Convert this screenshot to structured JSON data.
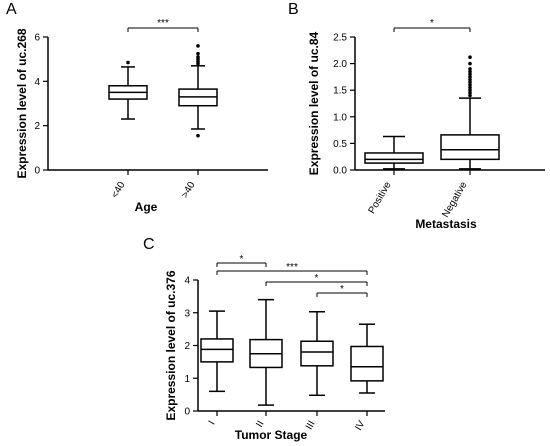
{
  "chart_data": [
    {
      "type": "box",
      "panel": "A",
      "ylabel": "Expression level of uc.268",
      "xlabel": "Age",
      "ylim": [
        0,
        6
      ],
      "yticks": [
        0,
        2,
        4,
        6
      ],
      "categories": [
        "<40",
        ">40"
      ],
      "boxes": [
        {
          "category": "<40",
          "whisker_low": 2.3,
          "q1": 3.2,
          "median": 3.5,
          "q3": 3.8,
          "whisker_high": 4.65,
          "outliers": [
            4.85
          ]
        },
        {
          "category": ">40",
          "whisker_low": 1.85,
          "q1": 2.9,
          "median": 3.3,
          "q3": 3.65,
          "whisker_high": 4.7,
          "outliers": [
            4.8,
            4.9,
            5.0,
            5.1,
            5.25,
            5.6,
            1.55
          ]
        }
      ],
      "significance": [
        {
          "from": "<40",
          "to": ">40",
          "label": "***"
        }
      ]
    },
    {
      "type": "box",
      "panel": "B",
      "ylabel": "Expression level of uc.84",
      "xlabel": "Metastasis",
      "ylim": [
        0,
        2.5
      ],
      "yticks": [
        0.0,
        0.5,
        1.0,
        1.5,
        2.0,
        2.5
      ],
      "categories": [
        "Positive",
        "Negative"
      ],
      "boxes": [
        {
          "category": "Positive",
          "whisker_low": 0.02,
          "q1": 0.13,
          "median": 0.2,
          "q3": 0.32,
          "whisker_high": 0.63,
          "outliers": []
        },
        {
          "category": "Negative",
          "whisker_low": 0.02,
          "q1": 0.2,
          "median": 0.38,
          "q3": 0.66,
          "whisker_high": 1.35,
          "outliers": [
            1.4,
            1.45,
            1.5,
            1.55,
            1.6,
            1.65,
            1.7,
            1.75,
            1.8,
            1.85,
            1.9,
            2.0,
            2.12
          ]
        }
      ],
      "significance": [
        {
          "from": "Positive",
          "to": "Negative",
          "label": "*"
        }
      ]
    },
    {
      "type": "box",
      "panel": "C",
      "ylabel": "Expression level of uc.376",
      "xlabel": "Tumor Stage",
      "ylim": [
        0,
        4
      ],
      "yticks": [
        0,
        1,
        2,
        3,
        4
      ],
      "categories": [
        "I",
        "II",
        "III",
        "IV"
      ],
      "boxes": [
        {
          "category": "I",
          "whisker_low": 0.6,
          "q1": 1.5,
          "median": 1.88,
          "q3": 2.2,
          "whisker_high": 3.05,
          "outliers": []
        },
        {
          "category": "II",
          "whisker_low": 0.18,
          "q1": 1.33,
          "median": 1.75,
          "q3": 2.18,
          "whisker_high": 3.4,
          "outliers": []
        },
        {
          "category": "III",
          "whisker_low": 0.48,
          "q1": 1.38,
          "median": 1.8,
          "q3": 2.13,
          "whisker_high": 3.03,
          "outliers": []
        },
        {
          "category": "IV",
          "whisker_low": 0.55,
          "q1": 0.92,
          "median": 1.35,
          "q3": 1.97,
          "whisker_high": 2.65,
          "outliers": []
        }
      ],
      "significance": [
        {
          "from": "I",
          "to": "II",
          "label": "*"
        },
        {
          "from": "I",
          "to": "IV",
          "label": "***"
        },
        {
          "from": "II",
          "to": "IV",
          "label": "*"
        },
        {
          "from": "III",
          "to": "IV",
          "label": "*"
        }
      ]
    }
  ]
}
